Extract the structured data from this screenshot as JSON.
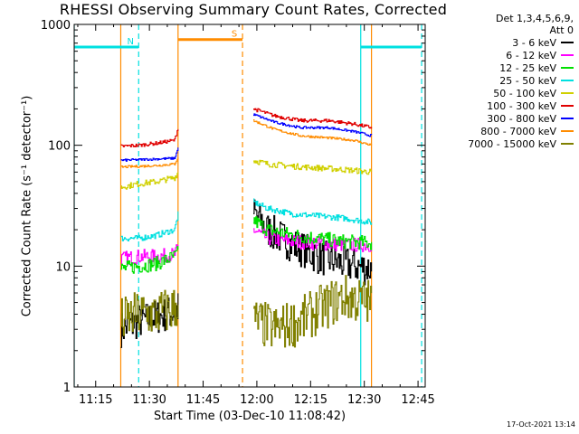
{
  "chart_data": {
    "type": "line",
    "title": "RHESSI Observing Summary Count Rates, Corrected",
    "xlabel": "Start Time (03-Dec-10 11:08:42)",
    "ylabel": "Corrected Count Rate (s⁻¹ detector⁻¹)",
    "yscale": "log",
    "xlim": [
      "11:09",
      "12:47"
    ],
    "ylim": [
      1,
      1000
    ],
    "xticks": [
      "11:15",
      "11:30",
      "11:45",
      "12:00",
      "12:15",
      "12:30",
      "12:45"
    ],
    "yticks": [
      "1",
      "10",
      "100",
      "1000"
    ],
    "legend_header": [
      "Det 1,3,4,5,6,9,",
      "Att 0"
    ],
    "legend_position": "right-outside",
    "timestamp": "17-Oct-2021 13:14",
    "flags": [
      {
        "label": "N",
        "color": "#00e0e0",
        "bar": [
          "11:09",
          "11:27"
        ],
        "level": 650,
        "dashed_edges": [
          "11:27"
        ]
      },
      {
        "label": "S",
        "color": "#ff8c00",
        "bar": [
          "11:38",
          "11:56"
        ],
        "level": 750,
        "dashed_edges": [
          "11:56"
        ]
      },
      {
        "label": "",
        "color": "#00e0e0",
        "bar": [
          "12:29",
          "12:46"
        ],
        "level": 650,
        "dashed_edges": [
          "12:46"
        ]
      }
    ],
    "vertical_lines": [
      {
        "t": "11:09",
        "color": "#00e0e0",
        "style": "solid"
      },
      {
        "t": "11:22",
        "color": "#ff8c00",
        "style": "solid"
      },
      {
        "t": "11:27",
        "color": "#00e0e0",
        "style": "dashed"
      },
      {
        "t": "11:38",
        "color": "#ff8c00",
        "style": "solid"
      },
      {
        "t": "11:56",
        "color": "#ff8c00",
        "style": "dashed"
      },
      {
        "t": "12:29",
        "color": "#00e0e0",
        "style": "solid"
      },
      {
        "t": "12:32",
        "color": "#ff8c00",
        "style": "solid"
      },
      {
        "t": "12:46",
        "color": "#00e0e0",
        "style": "dashed"
      }
    ],
    "segments": [
      [
        "11:22",
        "11:38"
      ],
      [
        "11:59",
        "12:32"
      ]
    ],
    "series": [
      {
        "name": "3 - 6 keV",
        "color": "#000000",
        "noise": 0.3,
        "points": [
          [
            "11:22",
            3.0
          ],
          [
            "11:27",
            3.5
          ],
          [
            "11:32",
            3.8
          ],
          [
            "11:37",
            4.2
          ],
          [
            "11:38",
            4.5
          ],
          [
            "11:59",
            28
          ],
          [
            "12:03",
            20
          ],
          [
            "12:10",
            15
          ],
          [
            "12:17",
            12
          ],
          [
            "12:24",
            10.5
          ],
          [
            "12:32",
            9.5
          ]
        ]
      },
      {
        "name": "6 - 12 keV",
        "color": "#ff00ff",
        "noise": 0.12,
        "points": [
          [
            "11:22",
            11.5
          ],
          [
            "11:27",
            12
          ],
          [
            "11:32",
            12
          ],
          [
            "11:37",
            12.5
          ],
          [
            "11:38",
            14
          ],
          [
            "11:59",
            20
          ],
          [
            "12:03",
            17
          ],
          [
            "12:10",
            16
          ],
          [
            "12:17",
            15.5
          ],
          [
            "12:24",
            15
          ],
          [
            "12:32",
            15
          ]
        ]
      },
      {
        "name": "12 - 25 keV",
        "color": "#00e000",
        "noise": 0.12,
        "points": [
          [
            "11:22",
            9.5
          ],
          [
            "11:27",
            10
          ],
          [
            "11:32",
            10.5
          ],
          [
            "11:37",
            12
          ],
          [
            "11:38",
            13
          ],
          [
            "11:59",
            24
          ],
          [
            "12:03",
            20
          ],
          [
            "12:10",
            18
          ],
          [
            "12:17",
            17
          ],
          [
            "12:24",
            16
          ],
          [
            "12:32",
            15.5
          ]
        ]
      },
      {
        "name": "25 - 50 keV",
        "color": "#00e0e0",
        "noise": 0.05,
        "points": [
          [
            "11:22",
            17
          ],
          [
            "11:27",
            17
          ],
          [
            "11:32",
            18
          ],
          [
            "11:37",
            20
          ],
          [
            "11:38",
            27
          ],
          [
            "11:59",
            34
          ],
          [
            "12:03",
            30
          ],
          [
            "12:10",
            27
          ],
          [
            "12:17",
            26
          ],
          [
            "12:24",
            25
          ],
          [
            "12:32",
            23
          ]
        ]
      },
      {
        "name": "50 - 100 keV",
        "color": "#d0d000",
        "noise": 0.05,
        "points": [
          [
            "11:22",
            45
          ],
          [
            "11:27",
            48
          ],
          [
            "11:32",
            50
          ],
          [
            "11:37",
            54
          ],
          [
            "11:38",
            60
          ],
          [
            "11:59",
            75
          ],
          [
            "12:03",
            70
          ],
          [
            "12:10",
            67
          ],
          [
            "12:17",
            65
          ],
          [
            "12:24",
            63
          ],
          [
            "12:32",
            60
          ]
        ]
      },
      {
        "name": "100 - 300 keV",
        "color": "#e00000",
        "noise": 0.03,
        "points": [
          [
            "11:22",
            98
          ],
          [
            "11:27",
            100
          ],
          [
            "11:32",
            104
          ],
          [
            "11:37",
            110
          ],
          [
            "11:38",
            140
          ],
          [
            "11:59",
            200
          ],
          [
            "12:05",
            175
          ],
          [
            "12:12",
            160
          ],
          [
            "12:20",
            160
          ],
          [
            "12:27",
            150
          ],
          [
            "12:32",
            140
          ]
        ]
      },
      {
        "name": "300 - 800 keV",
        "color": "#0000ff",
        "noise": 0.02,
        "points": [
          [
            "11:22",
            75
          ],
          [
            "11:27",
            76
          ],
          [
            "11:32",
            77
          ],
          [
            "11:37",
            78
          ],
          [
            "11:38",
            95
          ],
          [
            "11:59",
            180
          ],
          [
            "12:05",
            155
          ],
          [
            "12:12",
            140
          ],
          [
            "12:20",
            140
          ],
          [
            "12:27",
            130
          ],
          [
            "12:32",
            120
          ]
        ]
      },
      {
        "name": "800 - 7000 keV",
        "color": "#ff8c00",
        "noise": 0.02,
        "points": [
          [
            "11:22",
            66
          ],
          [
            "11:27",
            67
          ],
          [
            "11:32",
            68
          ],
          [
            "11:37",
            70
          ],
          [
            "11:38",
            80
          ],
          [
            "11:59",
            160
          ],
          [
            "12:05",
            135
          ],
          [
            "12:12",
            120
          ],
          [
            "12:20",
            115
          ],
          [
            "12:27",
            110
          ],
          [
            "12:32",
            100
          ]
        ]
      },
      {
        "name": "7000 - 15000 keV",
        "color": "#808000",
        "noise": 0.4,
        "points": [
          [
            "11:22",
            3.5
          ],
          [
            "11:27",
            4.0
          ],
          [
            "11:32",
            4.0
          ],
          [
            "11:37",
            4.5
          ],
          [
            "11:38",
            5
          ],
          [
            "11:59",
            3.5
          ],
          [
            "12:05",
            3.0
          ],
          [
            "12:12",
            3.5
          ],
          [
            "12:18",
            4.5
          ],
          [
            "12:24",
            5.5
          ],
          [
            "12:32",
            5.0
          ]
        ]
      }
    ]
  }
}
